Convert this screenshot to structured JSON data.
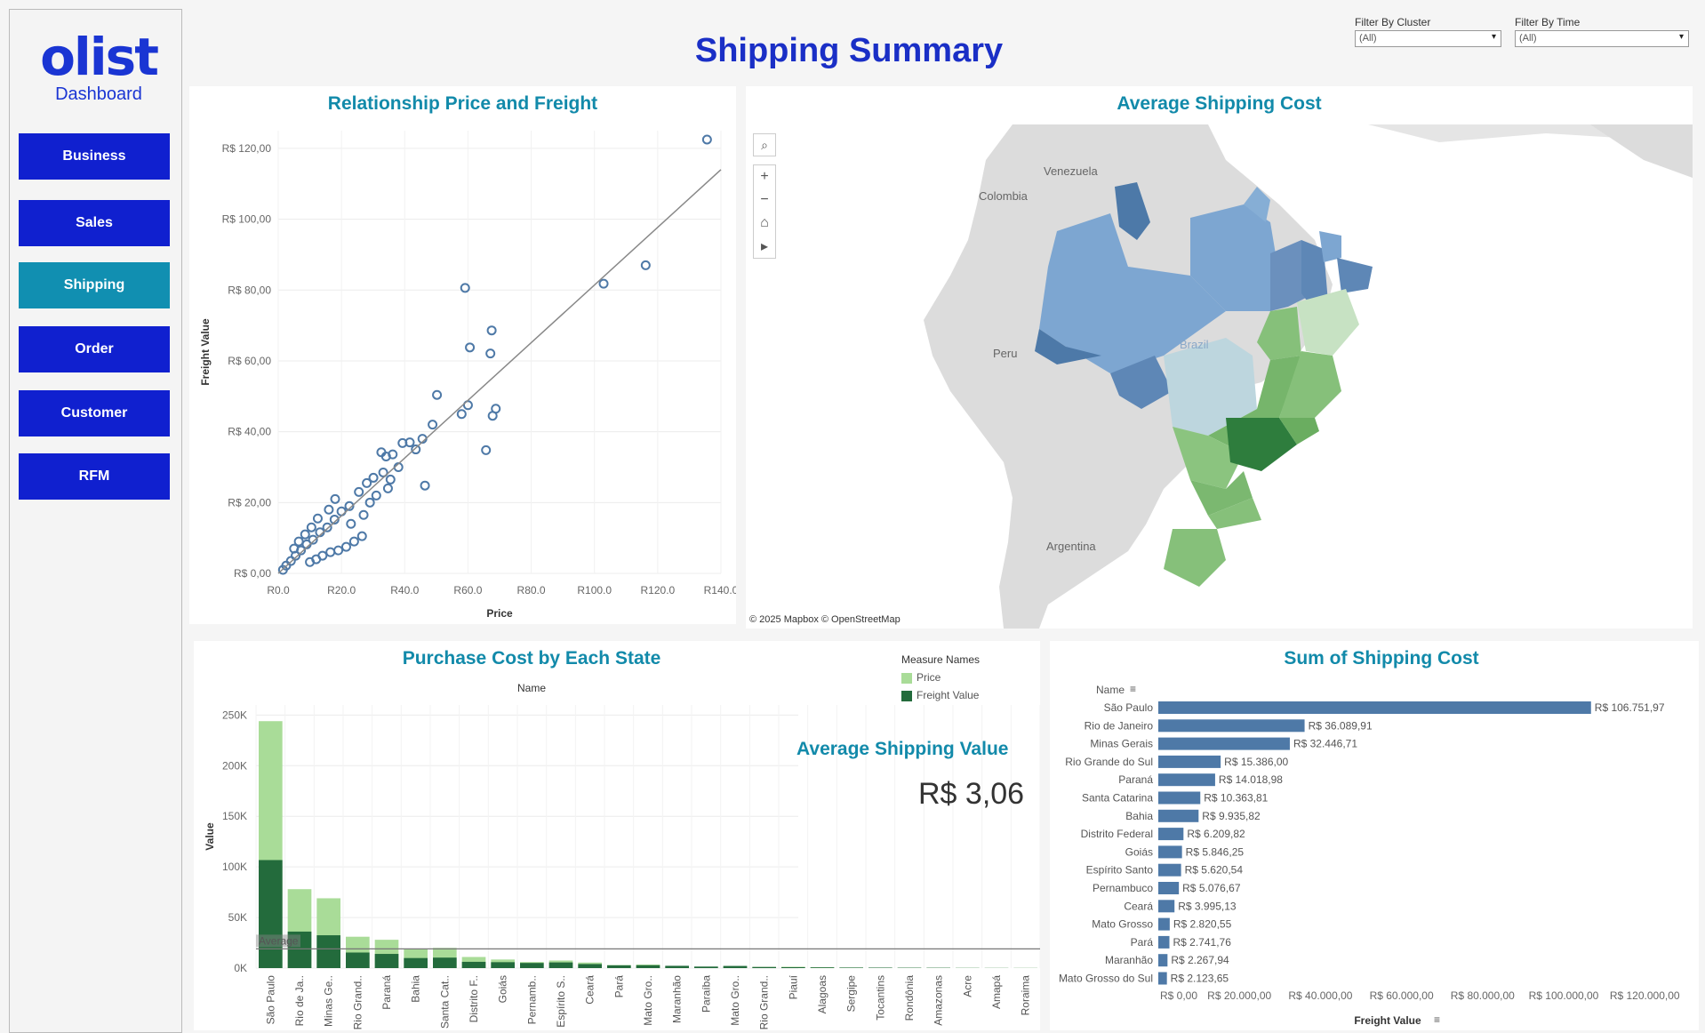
{
  "brand": {
    "logo": "olist",
    "subtitle": "Dashboard"
  },
  "nav": [
    {
      "label": "Business",
      "active": false
    },
    {
      "label": "Sales",
      "active": false
    },
    {
      "label": "Shipping",
      "active": true
    },
    {
      "label": "Order",
      "active": false
    },
    {
      "label": "Customer",
      "active": false
    },
    {
      "label": "RFM",
      "active": false
    }
  ],
  "page_title": "Shipping Summary",
  "filters": [
    {
      "label": "Filter By Cluster",
      "value": "(All)"
    },
    {
      "label": "Filter By Time",
      "value": "(All)"
    }
  ],
  "colors": {
    "brand": "#1a35d3",
    "nav": "#1020cf",
    "nav_active": "#118fb1",
    "panel_title": "#128aaa",
    "bar_blue": "#4e79a7",
    "price_green": "#a9dc98",
    "freight_green": "#236b3c"
  },
  "scatter_panel": {
    "title": "Relationship Price and Freight"
  },
  "map_panel": {
    "title": "Average Shipping Cost",
    "attribution": "© 2025 Mapbox  © OpenStreetMap",
    "labels": [
      "Venezuela",
      "Colombia",
      "Peru",
      "Argentina",
      "Brazil"
    ],
    "controls": [
      "search-icon",
      "zoom-in-icon",
      "zoom-out-icon",
      "home-icon",
      "play-icon"
    ]
  },
  "state_panel": {
    "title": "Purchase Cost by Each State",
    "header": "Name",
    "legend_title": "Measure Names",
    "legend": [
      {
        "label": "Price",
        "color": "#a9dc98"
      },
      {
        "label": "Freight Value",
        "color": "#236b3c"
      }
    ],
    "avg_title": "Average Shipping Value",
    "avg_value": "R$ 3,06",
    "ref_line_label": "Average"
  },
  "sum_panel": {
    "title": "Sum of Shipping Cost",
    "header": "Name"
  },
  "chart_data": [
    {
      "type": "scatter",
      "title": "Relationship Price and Freight",
      "xlabel": "Price",
      "ylabel": "Freight Value",
      "xlim": [
        0,
        140
      ],
      "ylim": [
        0,
        125
      ],
      "x_ticks": [
        "R0.0",
        "R20.0",
        "R40.0",
        "R60.0",
        "R80.0",
        "R100.0",
        "R120.0",
        "R140.0"
      ],
      "y_ticks": [
        "R$ 0,00",
        "R$ 20,00",
        "R$ 40,00",
        "R$ 60,00",
        "R$ 80,00",
        "R$ 100,00",
        "R$ 120,00"
      ],
      "trend_line": {
        "x": [
          0,
          140
        ],
        "y": [
          0,
          114
        ]
      },
      "points": [
        [
          135.6,
          122.5
        ],
        [
          116.2,
          87.0
        ],
        [
          102.9,
          81.8
        ],
        [
          59.1,
          80.6
        ],
        [
          67.5,
          68.6
        ],
        [
          67.1,
          62.1
        ],
        [
          60.6,
          63.8
        ],
        [
          50.2,
          50.4
        ],
        [
          60.0,
          47.5
        ],
        [
          58.0,
          45.0
        ],
        [
          68.8,
          46.5
        ],
        [
          67.8,
          44.5
        ],
        [
          48.8,
          42.0
        ],
        [
          45.6,
          38.0
        ],
        [
          41.6,
          37.0
        ],
        [
          43.5,
          35.0
        ],
        [
          39.3,
          36.8
        ],
        [
          65.7,
          34.8
        ],
        [
          36.2,
          33.6
        ],
        [
          34.1,
          33.0
        ],
        [
          32.6,
          34.2
        ],
        [
          33.2,
          28.5
        ],
        [
          46.4,
          24.8
        ],
        [
          34.7,
          24.0
        ],
        [
          30.1,
          27.0
        ],
        [
          28.0,
          25.5
        ],
        [
          25.5,
          23.0
        ],
        [
          22.5,
          19.0
        ],
        [
          20.0,
          17.5
        ],
        [
          17.8,
          15.2
        ],
        [
          15.5,
          13.0
        ],
        [
          13.2,
          11.6
        ],
        [
          11.0,
          9.5
        ],
        [
          9.0,
          8.2
        ],
        [
          7.2,
          6.5
        ],
        [
          5.5,
          5.0
        ],
        [
          4.0,
          3.5
        ],
        [
          2.5,
          2.2
        ],
        [
          1.5,
          1.0
        ],
        [
          26.5,
          10.5
        ],
        [
          24.0,
          9.0
        ],
        [
          21.5,
          7.5
        ],
        [
          19.0,
          6.5
        ],
        [
          16.5,
          6.0
        ],
        [
          14.0,
          5.0
        ],
        [
          12.0,
          4.0
        ],
        [
          10.0,
          3.2
        ],
        [
          18.0,
          21.0
        ],
        [
          16.0,
          18.0
        ],
        [
          12.5,
          15.5
        ],
        [
          10.5,
          13.0
        ],
        [
          8.5,
          11.0
        ],
        [
          6.5,
          9.0
        ],
        [
          5.0,
          7.0
        ],
        [
          29.0,
          20.0
        ],
        [
          31.0,
          22.0
        ],
        [
          27.0,
          16.5
        ],
        [
          23.0,
          14.0
        ],
        [
          38.0,
          30.0
        ],
        [
          35.5,
          26.5
        ]
      ]
    },
    {
      "type": "bar",
      "title": "Purchase Cost by Each State",
      "xlabel": "Name",
      "ylabel": "Value",
      "stacked": false,
      "ylim": [
        0,
        260000
      ],
      "y_ticks": [
        "0K",
        "50K",
        "100K",
        "150K",
        "200K",
        "250K"
      ],
      "average_line": 19000,
      "categories": [
        "São Paulo",
        "Rio de Ja..",
        "Minas Ge..",
        "Rio Grand..",
        "Paraná",
        "Bahia",
        "Santa Cat..",
        "Distrito F..",
        "Goiás",
        "Pernamb..",
        "Espírito S..",
        "Ceará",
        "Pará",
        "Mato Gro..",
        "Maranhão",
        "Paraíba",
        "Mato Gro..",
        "Rio Grand..",
        "Piauí",
        "Alagoas",
        "Sergipe",
        "Tocantins",
        "Rondônia",
        "Amazonas",
        "Acre",
        "Amapá",
        "Roraima"
      ],
      "series": [
        {
          "name": "Price",
          "values": [
            244000,
            78000,
            69000,
            31000,
            28000,
            19000,
            20000,
            11000,
            8500,
            6000,
            7500,
            5500,
            3000,
            3500,
            1800,
            1400,
            2000,
            1200,
            1300,
            900,
            600,
            500,
            400,
            300,
            200,
            150,
            120
          ]
        },
        {
          "name": "Freight Value",
          "values": [
            106752,
            36090,
            32447,
            15386,
            14019,
            9936,
            10364,
            6210,
            5846,
            5077,
            5621,
            3995,
            2742,
            2821,
            2268,
            1500,
            2124,
            1100,
            900,
            700,
            500,
            450,
            350,
            300,
            150,
            120,
            100
          ]
        }
      ]
    },
    {
      "type": "bar",
      "orientation": "horizontal",
      "title": "Sum of Shipping Cost",
      "xlabel": "Freight Value",
      "ylabel": "Name",
      "xlim": [
        0,
        125000
      ],
      "x_ticks": [
        "R$ 0,00",
        "R$ 20.000,00",
        "R$ 40.000,00",
        "R$ 60.000,00",
        "R$ 80.000,00",
        "R$ 100.000,00",
        "R$ 120.000,00"
      ],
      "categories": [
        "São Paulo",
        "Rio de Janeiro",
        "Minas Gerais",
        "Rio Grande do Sul",
        "Paraná",
        "Santa Catarina",
        "Bahia",
        "Distrito Federal",
        "Goiás",
        "Espírito Santo",
        "Pernambuco",
        "Ceará",
        "Mato Grosso",
        "Pará",
        "Maranhão",
        "Mato Grosso do Sul"
      ],
      "values": [
        106751.97,
        36089.91,
        32446.71,
        15386.0,
        14018.98,
        10363.81,
        9935.82,
        6209.82,
        5846.25,
        5620.54,
        5076.67,
        3995.13,
        2820.55,
        2741.76,
        2267.94,
        2123.65
      ],
      "labels": [
        "R$ 106.751,97",
        "R$ 36.089,91",
        "R$ 32.446,71",
        "R$ 15.386,00",
        "R$ 14.018,98",
        "R$ 10.363,81",
        "R$ 9.935,82",
        "R$ 6.209,82",
        "R$ 5.846,25",
        "R$ 5.620,54",
        "R$ 5.076,67",
        "R$ 3.995,13",
        "R$ 2.820,55",
        "R$ 2.741,76",
        "R$ 2.267,94",
        "R$ 2.123,65"
      ]
    }
  ]
}
